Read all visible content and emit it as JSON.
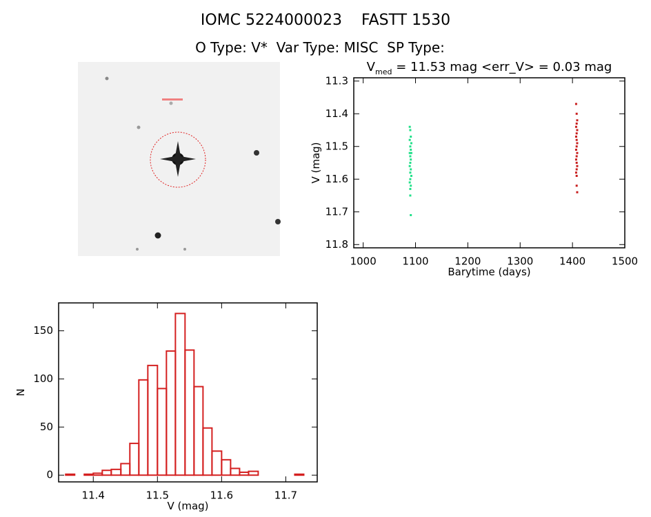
{
  "header": {
    "title": "IOMC 5224000023    FASTT 1530",
    "subtitle": "O Type: V*  Var Type: MISC  SP Type:"
  },
  "chart_data": [
    {
      "type": "scatter",
      "title": {
        "main": "V",
        "sub": "med",
        "rest": " = 11.53 mag <err_V> = 0.03 mag"
      },
      "x_label": "Barytime (days)",
      "y_label": "V (mag)",
      "xlim": [
        982,
        1500
      ],
      "xticks": [
        1000,
        1100,
        1200,
        1300,
        1400,
        1500
      ],
      "ylim": [
        11.81,
        11.29
      ],
      "yticks": [
        11.3,
        11.4,
        11.5,
        11.6,
        11.7,
        11.8
      ],
      "series": [
        {
          "color": "#22e08a",
          "x": [
            1089,
            1090,
            1091,
            1089,
            1092,
            1090,
            1091,
            1089,
            1090,
            1092,
            1091,
            1090,
            1089,
            1091,
            1090,
            1092,
            1090,
            1089,
            1091,
            1090,
            1090,
            1091
          ],
          "values": [
            11.44,
            11.45,
            11.47,
            11.48,
            11.49,
            11.5,
            11.51,
            11.52,
            11.53,
            11.52,
            11.54,
            11.55,
            11.56,
            11.57,
            11.58,
            11.59,
            11.6,
            11.61,
            11.62,
            11.63,
            11.65,
            11.71
          ]
        },
        {
          "color": "#c81e1e",
          "x": [
            1407,
            1408,
            1409,
            1408,
            1407,
            1409,
            1408,
            1407,
            1408,
            1409,
            1408,
            1407,
            1409,
            1408,
            1407,
            1408,
            1409,
            1408,
            1407,
            1408,
            1408,
            1409
          ],
          "values": [
            11.37,
            11.4,
            11.42,
            11.43,
            11.44,
            11.45,
            11.46,
            11.47,
            11.48,
            11.49,
            11.5,
            11.51,
            11.52,
            11.53,
            11.54,
            11.55,
            11.56,
            11.57,
            11.58,
            11.59,
            11.62,
            11.64
          ]
        }
      ]
    },
    {
      "type": "histogram",
      "x_label": "V (mag)",
      "y_label": "N",
      "color": "#d42020",
      "bins": [
        11.357,
        11.371,
        11.386,
        11.4,
        11.414,
        11.428,
        11.443,
        11.457,
        11.471,
        11.485,
        11.5,
        11.514,
        11.528,
        11.543,
        11.557,
        11.571,
        11.585,
        11.6,
        11.614,
        11.628,
        11.642,
        11.657,
        11.671,
        11.685,
        11.699,
        11.714,
        11.728
      ],
      "values": [
        1,
        0,
        1,
        2,
        5,
        6,
        12,
        33,
        99,
        114,
        90,
        129,
        168,
        130,
        92,
        49,
        25,
        16,
        7,
        3,
        4,
        0,
        0,
        0,
        0,
        1
      ],
      "xlim": [
        11.346,
        11.749
      ],
      "xticks": [
        11.4,
        11.5,
        11.6,
        11.7
      ],
      "ylim": [
        -7,
        179
      ],
      "yticks": [
        0,
        50,
        100,
        150
      ]
    }
  ]
}
